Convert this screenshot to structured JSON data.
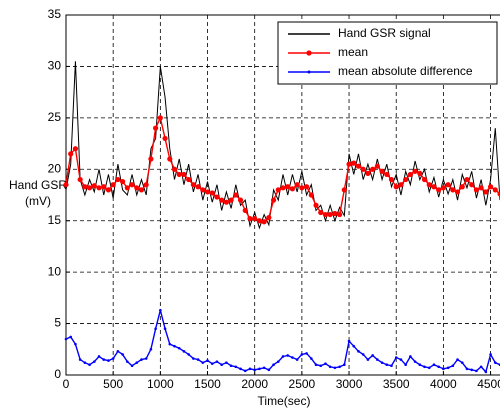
{
  "chart_data": {
    "type": "line",
    "ylabel": [
      "Hand GSR",
      "(mV)"
    ],
    "xlabel": "Time(sec)",
    "x": [
      0,
      50,
      100,
      150,
      200,
      250,
      300,
      350,
      400,
      450,
      500,
      550,
      600,
      650,
      700,
      750,
      800,
      850,
      900,
      950,
      1000,
      1050,
      1100,
      1150,
      1200,
      1250,
      1300,
      1350,
      1400,
      1450,
      1500,
      1550,
      1600,
      1650,
      1700,
      1750,
      1800,
      1850,
      1900,
      1950,
      2000,
      2050,
      2100,
      2150,
      2200,
      2250,
      2300,
      2350,
      2400,
      2450,
      2500,
      2550,
      2600,
      2650,
      2700,
      2750,
      2800,
      2850,
      2900,
      2950,
      3000,
      3050,
      3100,
      3150,
      3200,
      3250,
      3300,
      3350,
      3400,
      3450,
      3500,
      3550,
      3600,
      3650,
      3700,
      3750,
      3800,
      3850,
      3900,
      3950,
      4000,
      4050,
      4100,
      4150,
      4200,
      4250,
      4300,
      4350,
      4400,
      4450,
      4500,
      4550,
      4600
    ],
    "series": [
      {
        "name": "Hand GSR signal",
        "color": "#000000",
        "marker": false,
        "values": [
          18,
          20.5,
          30.5,
          19,
          17.5,
          19,
          17.8,
          20,
          17.5,
          19.5,
          17.2,
          20.5,
          18,
          17.5,
          19.5,
          17.5,
          19,
          17.5,
          22,
          23,
          30,
          27,
          22,
          19,
          21,
          18.5,
          20.5,
          17.8,
          19.5,
          17,
          18.8,
          16.8,
          18.5,
          16,
          17.8,
          16.2,
          18.5,
          16.5,
          17,
          14.5,
          15.8,
          14.3,
          15.6,
          14.6,
          18,
          17,
          19.5,
          17.5,
          19.5,
          17.8,
          19.8,
          17.5,
          18.5,
          16,
          16.5,
          15,
          16.5,
          15,
          16.3,
          15.5,
          21.5,
          19.5,
          21.5,
          19,
          20.5,
          19,
          21,
          19,
          20.5,
          18.3,
          19.5,
          17.5,
          19.8,
          18.5,
          20.8,
          19,
          20,
          17.8,
          19.2,
          17.3,
          19,
          17.6,
          19,
          17,
          19.5,
          18.2,
          19.8,
          17.2,
          19,
          16.5,
          19,
          24,
          17
        ]
      },
      {
        "name": "mean",
        "color": "#ff0000",
        "marker": true,
        "values": [
          18.5,
          21.5,
          22,
          19,
          18.3,
          18.2,
          18.4,
          18.2,
          18.3,
          18,
          18.5,
          19,
          18.8,
          18.2,
          18.5,
          18.2,
          18,
          18.5,
          21,
          24,
          25,
          23,
          21,
          20,
          19.5,
          19.5,
          19,
          18.5,
          18.3,
          18,
          17.8,
          17.7,
          17.3,
          17,
          16.8,
          17,
          17.5,
          17,
          16,
          15.2,
          15.2,
          15,
          14.9,
          15.3,
          17,
          18,
          18.2,
          18.3,
          18.1,
          18.5,
          18.2,
          18.3,
          17.5,
          16.5,
          15.8,
          15.6,
          15.6,
          15.7,
          15.6,
          18,
          20.5,
          20.6,
          20.3,
          20,
          19.6,
          20,
          20.3,
          19.8,
          19.5,
          19,
          18.3,
          18.5,
          19,
          19.5,
          19.8,
          19.6,
          19,
          18.5,
          18.3,
          18,
          18.2,
          18.5,
          18,
          17.8,
          18.3,
          19,
          18.5,
          18,
          18.2,
          17.8,
          18.3,
          18,
          17.6
        ]
      },
      {
        "name": "mean absolute difference",
        "color": "#0000ff",
        "marker": true,
        "values": [
          3.5,
          3.7,
          3,
          1.5,
          1.2,
          1,
          1.3,
          1.8,
          1.5,
          1.4,
          1.6,
          2.3,
          2,
          1.3,
          0.9,
          1.2,
          1.5,
          1.6,
          2.5,
          4.5,
          6.3,
          4.5,
          3,
          2.8,
          2.6,
          2.3,
          2,
          1.6,
          1.5,
          1.2,
          1.4,
          1.1,
          1.3,
          1,
          1.2,
          0.9,
          0.8,
          0.6,
          0.4,
          0.6,
          0.5,
          0.6,
          0.7,
          0.5,
          1,
          1.3,
          1.8,
          1.9,
          1.7,
          1.5,
          2,
          2.1,
          1.6,
          1,
          0.9,
          1.1,
          0.8,
          0.7,
          0.8,
          1,
          3.3,
          2.8,
          2.3,
          2,
          1.5,
          1.9,
          1.5,
          1.2,
          1,
          0.9,
          1.7,
          1.5,
          1,
          1.8,
          1.3,
          1,
          0.8,
          0.7,
          1,
          0.8,
          0.6,
          0.7,
          0.9,
          1.5,
          1.2,
          0.6,
          0.5,
          0.4,
          0.8,
          0.3,
          2,
          1.2,
          1
        ]
      }
    ],
    "xlim": [
      0,
      4600
    ],
    "ylim": [
      0,
      35
    ],
    "xticks": [
      0,
      500,
      1000,
      1500,
      2000,
      2500,
      3000,
      3500,
      4000,
      4500
    ],
    "yticks": [
      0,
      5,
      10,
      15,
      20,
      25,
      30,
      35
    ],
    "grid": true,
    "legend": "upper right"
  }
}
